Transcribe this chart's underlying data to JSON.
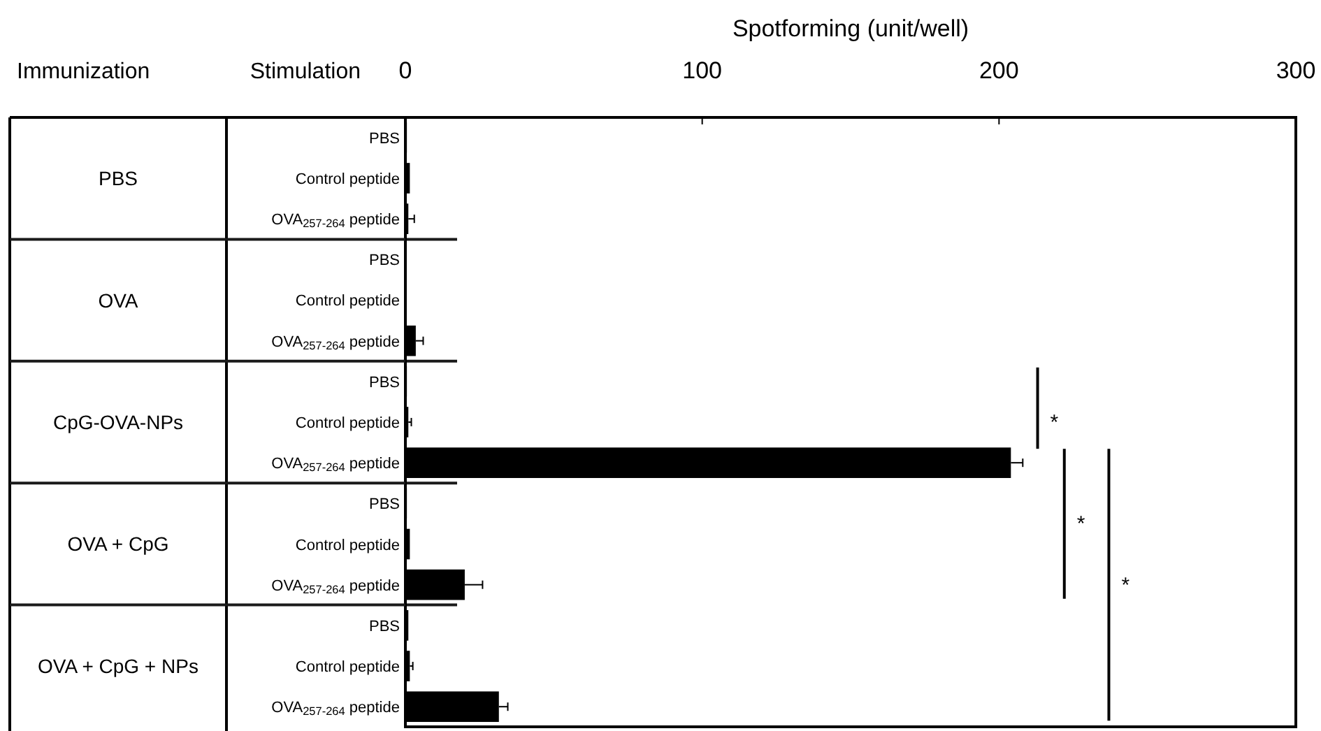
{
  "chart_data": {
    "type": "bar",
    "orientation": "horizontal",
    "xlabel": "Spotforming (unit/well)",
    "categories": [
      "PBS",
      "Control peptide",
      "OVA$_{257-264}$ peptide",
      "PBS",
      "Control peptide",
      "OVA$_{257-264}$ peptide",
      "PBS",
      "Control peptide",
      "OVA$_{257-264}$ peptide",
      "PBS",
      "Control peptide",
      "OVA$_{257-264}$ peptide",
      "PBS",
      "Control peptide",
      "OVA$_{257-264}$ peptide"
    ],
    "values": [
      0.5,
      1.5,
      1,
      0.3,
      0.3,
      3.5,
      0.5,
      1,
      204,
      0.5,
      1.5,
      20,
      1,
      1.5,
      31.5
    ],
    "errors": [
      null,
      null,
      2,
      null,
      null,
      2.5,
      null,
      1,
      4,
      null,
      null,
      6,
      null,
      1,
      3
    ],
    "color": "#000000",
    "xlim": [
      0,
      300
    ],
    "xticks": [
      0,
      100,
      200,
      300
    ],
    "annotations": [
      "Immunization",
      "Stimulation",
      "PBS",
      "OVA",
      "CpG-OVA-NPs",
      "OVA + CpG",
      "OVA + CpG + NPs",
      "*",
      "*",
      "*"
    ]
  }
}
